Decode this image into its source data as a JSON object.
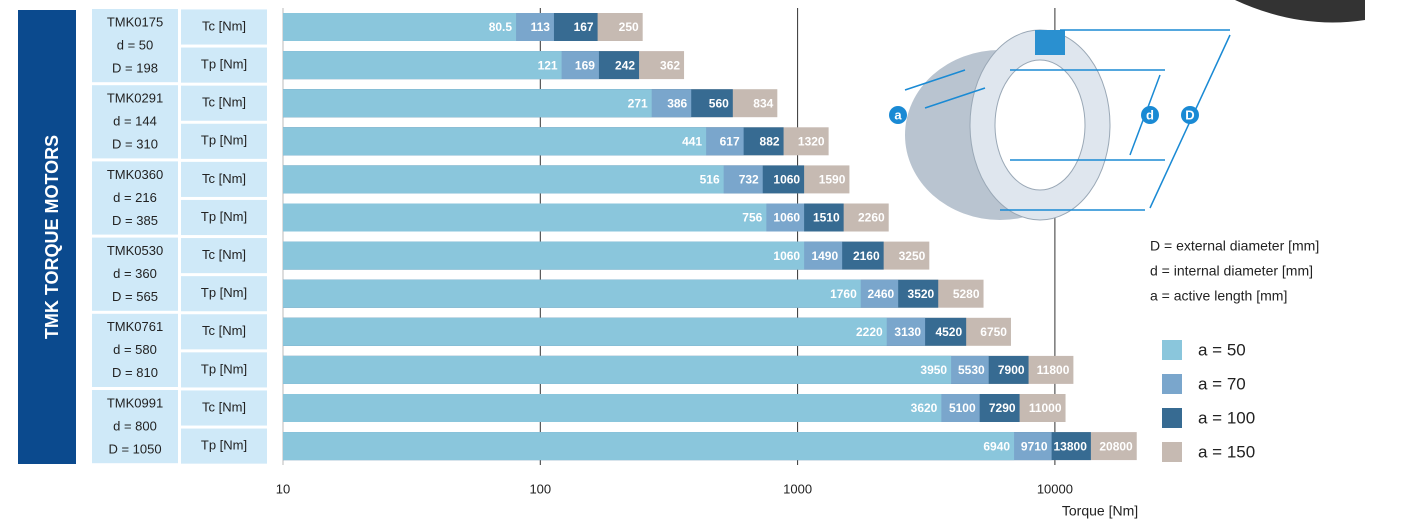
{
  "chart_data": {
    "type": "bar",
    "banner": "TMK TORQUE MOTORS",
    "x_label": "Torque [Nm]",
    "log_scale": true,
    "xlim": [
      10,
      22000
    ],
    "xticks": [
      10,
      100,
      1000,
      10000
    ],
    "grid": true,
    "groups": [
      {
        "name": "TMK0175",
        "d": "d = 50",
        "D": "D = 198"
      },
      {
        "name": "TMK0291",
        "d": "d = 144",
        "D": "D = 310"
      },
      {
        "name": "TMK0360",
        "d": "d = 216",
        "D": "D = 385"
      },
      {
        "name": "TMK0530",
        "d": "d = 360",
        "D": "D = 565"
      },
      {
        "name": "TMK0761",
        "d": "d = 580",
        "D": "D = 810"
      },
      {
        "name": "TMK0991",
        "d": "d = 800",
        "D": "D = 1050"
      }
    ],
    "categories": [
      "Tc [Nm]",
      "Tp [Nm]",
      "Tc [Nm]",
      "Tp [Nm]",
      "Tc [Nm]",
      "Tp [Nm]",
      "Tc [Nm]",
      "Tp [Nm]",
      "Tc [Nm]",
      "Tp [Nm]",
      "Tc [Nm]",
      "Tp [Nm]"
    ],
    "series": [
      {
        "name": "a = 50",
        "color": "#8ac6dc",
        "values": [
          80.5,
          121,
          271,
          441,
          516,
          756,
          1060,
          1760,
          2220,
          3950,
          3620,
          6940
        ]
      },
      {
        "name": "a = 70",
        "color": "#7aa6cc",
        "values": [
          113,
          169,
          386,
          617,
          732,
          1060,
          1490,
          2460,
          3130,
          5530,
          5100,
          9710
        ]
      },
      {
        "name": "a = 100",
        "color": "#376b92",
        "values": [
          167,
          242,
          560,
          882,
          1060,
          1510,
          2160,
          3520,
          4520,
          7900,
          7290,
          13800
        ]
      },
      {
        "name": "a = 150",
        "color": "#c6bab2",
        "values": [
          250,
          362,
          834,
          1320,
          1590,
          2260,
          3250,
          5280,
          6750,
          11800,
          11000,
          20800
        ]
      }
    ],
    "notes": [
      "D = external diameter [mm]",
      "d  = internal diameter [mm]",
      "a  = active length [mm]"
    ],
    "diagram_labels": {
      "a": "a",
      "d": "d",
      "D": "D"
    }
  }
}
